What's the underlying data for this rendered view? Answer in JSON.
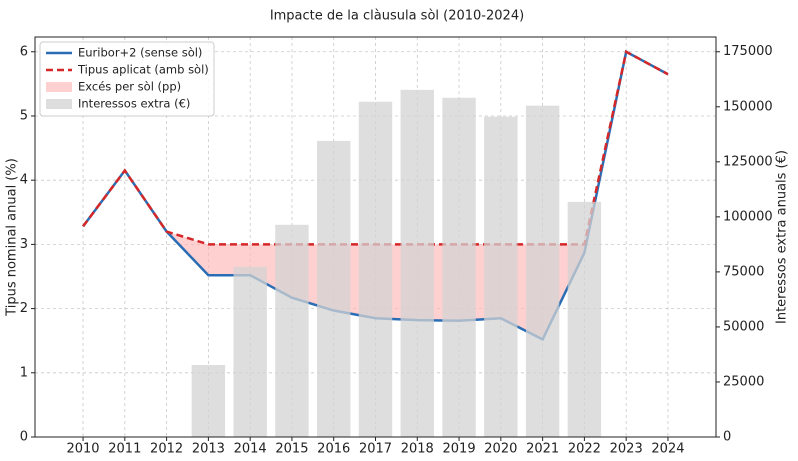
{
  "chart_data": {
    "type": "line",
    "title": "Impacte de la clàusula sòl (2010-2024)",
    "ylabel": "Tipus nominal anual (%)",
    "y2label": "Interessos extra anuals (€)",
    "x": [
      2010,
      2011,
      2012,
      2013,
      2014,
      2015,
      2016,
      2017,
      2018,
      2019,
      2020,
      2021,
      2022,
      2023,
      2024
    ],
    "xlim": [
      2008.85,
      2025.15
    ],
    "xticks": [
      2010,
      2011,
      2012,
      2013,
      2014,
      2015,
      2016,
      2017,
      2018,
      2019,
      2020,
      2021,
      2022,
      2023,
      2024
    ],
    "ylim": [
      0,
      6.23
    ],
    "yticks": [
      0,
      1,
      2,
      3,
      4,
      5,
      6
    ],
    "y2lim": [
      0,
      181700
    ],
    "y2ticks": [
      0,
      25000,
      50000,
      75000,
      100000,
      125000,
      150000,
      175000
    ],
    "grid": true,
    "legend": "upper left",
    "series": [
      {
        "name": "Euribor+2 (sense sòl)",
        "color": "#2a6db5",
        "style": "solid",
        "values": [
          3.28,
          4.15,
          3.2,
          2.52,
          2.52,
          2.17,
          1.97,
          1.85,
          1.82,
          1.81,
          1.85,
          1.52,
          2.87,
          6.0,
          5.65
        ]
      },
      {
        "name": "Tipus aplicat (amb sòl)",
        "color": "#d62728",
        "style": "dashed",
        "values": [
          3.28,
          4.15,
          3.2,
          3,
          3,
          3,
          3,
          3,
          3,
          3,
          3,
          3,
          3,
          6.0,
          5.65
        ]
      },
      {
        "name": "Interessos extra (€)",
        "color": "#d3d3d3",
        "type": "bar",
        "axis": "y2",
        "values": [
          null,
          null,
          null,
          32700,
          77300,
          96400,
          134500,
          152300,
          157700,
          154100,
          145500,
          150500,
          106800,
          null,
          null
        ]
      }
    ],
    "fill": {
      "name": "Excés per sòl (pp)",
      "color": "#ffb0b0"
    }
  }
}
